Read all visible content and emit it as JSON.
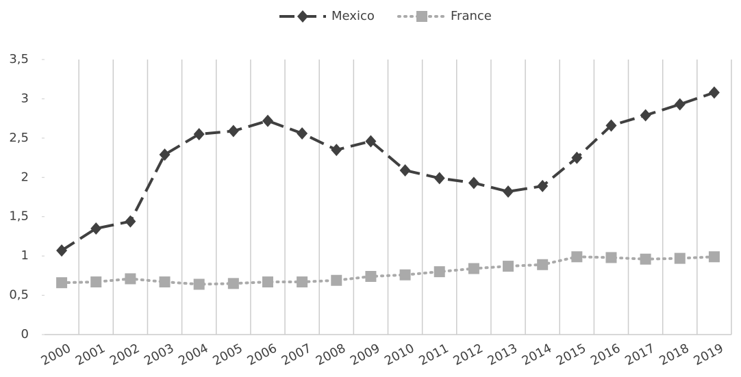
{
  "chart_data": {
    "type": "line",
    "categories": [
      "2000",
      "2001",
      "2002",
      "2003",
      "2004",
      "2005",
      "2006",
      "2007",
      "2008",
      "2009",
      "2010",
      "2011",
      "2012",
      "2013",
      "2014",
      "2015",
      "2016",
      "2017",
      "2018",
      "2019"
    ],
    "series": [
      {
        "name": "Mexico",
        "color": "#404040",
        "values": [
          1.07,
          1.35,
          1.44,
          2.29,
          2.55,
          2.59,
          2.72,
          2.56,
          2.35,
          2.46,
          2.09,
          1.99,
          1.93,
          1.82,
          1.89,
          2.25,
          2.66,
          2.79,
          2.93,
          3.08
        ]
      },
      {
        "name": "France",
        "color": "#aaaaaa",
        "values": [
          0.66,
          0.67,
          0.71,
          0.67,
          0.64,
          0.65,
          0.67,
          0.67,
          0.69,
          0.74,
          0.76,
          0.8,
          0.84,
          0.87,
          0.89,
          0.99,
          0.98,
          0.96,
          0.97,
          0.99
        ]
      }
    ],
    "ylim": [
      0,
      3.5
    ],
    "yticks": [
      0,
      {
        "value": 0.5,
        "label": "0,5"
      },
      1,
      {
        "value": 1.5,
        "label": "1,5"
      },
      2,
      {
        "value": 2.5,
        "label": "2,5"
      },
      3,
      {
        "value": 3.5,
        "label": "3,5"
      }
    ],
    "grid": true
  }
}
